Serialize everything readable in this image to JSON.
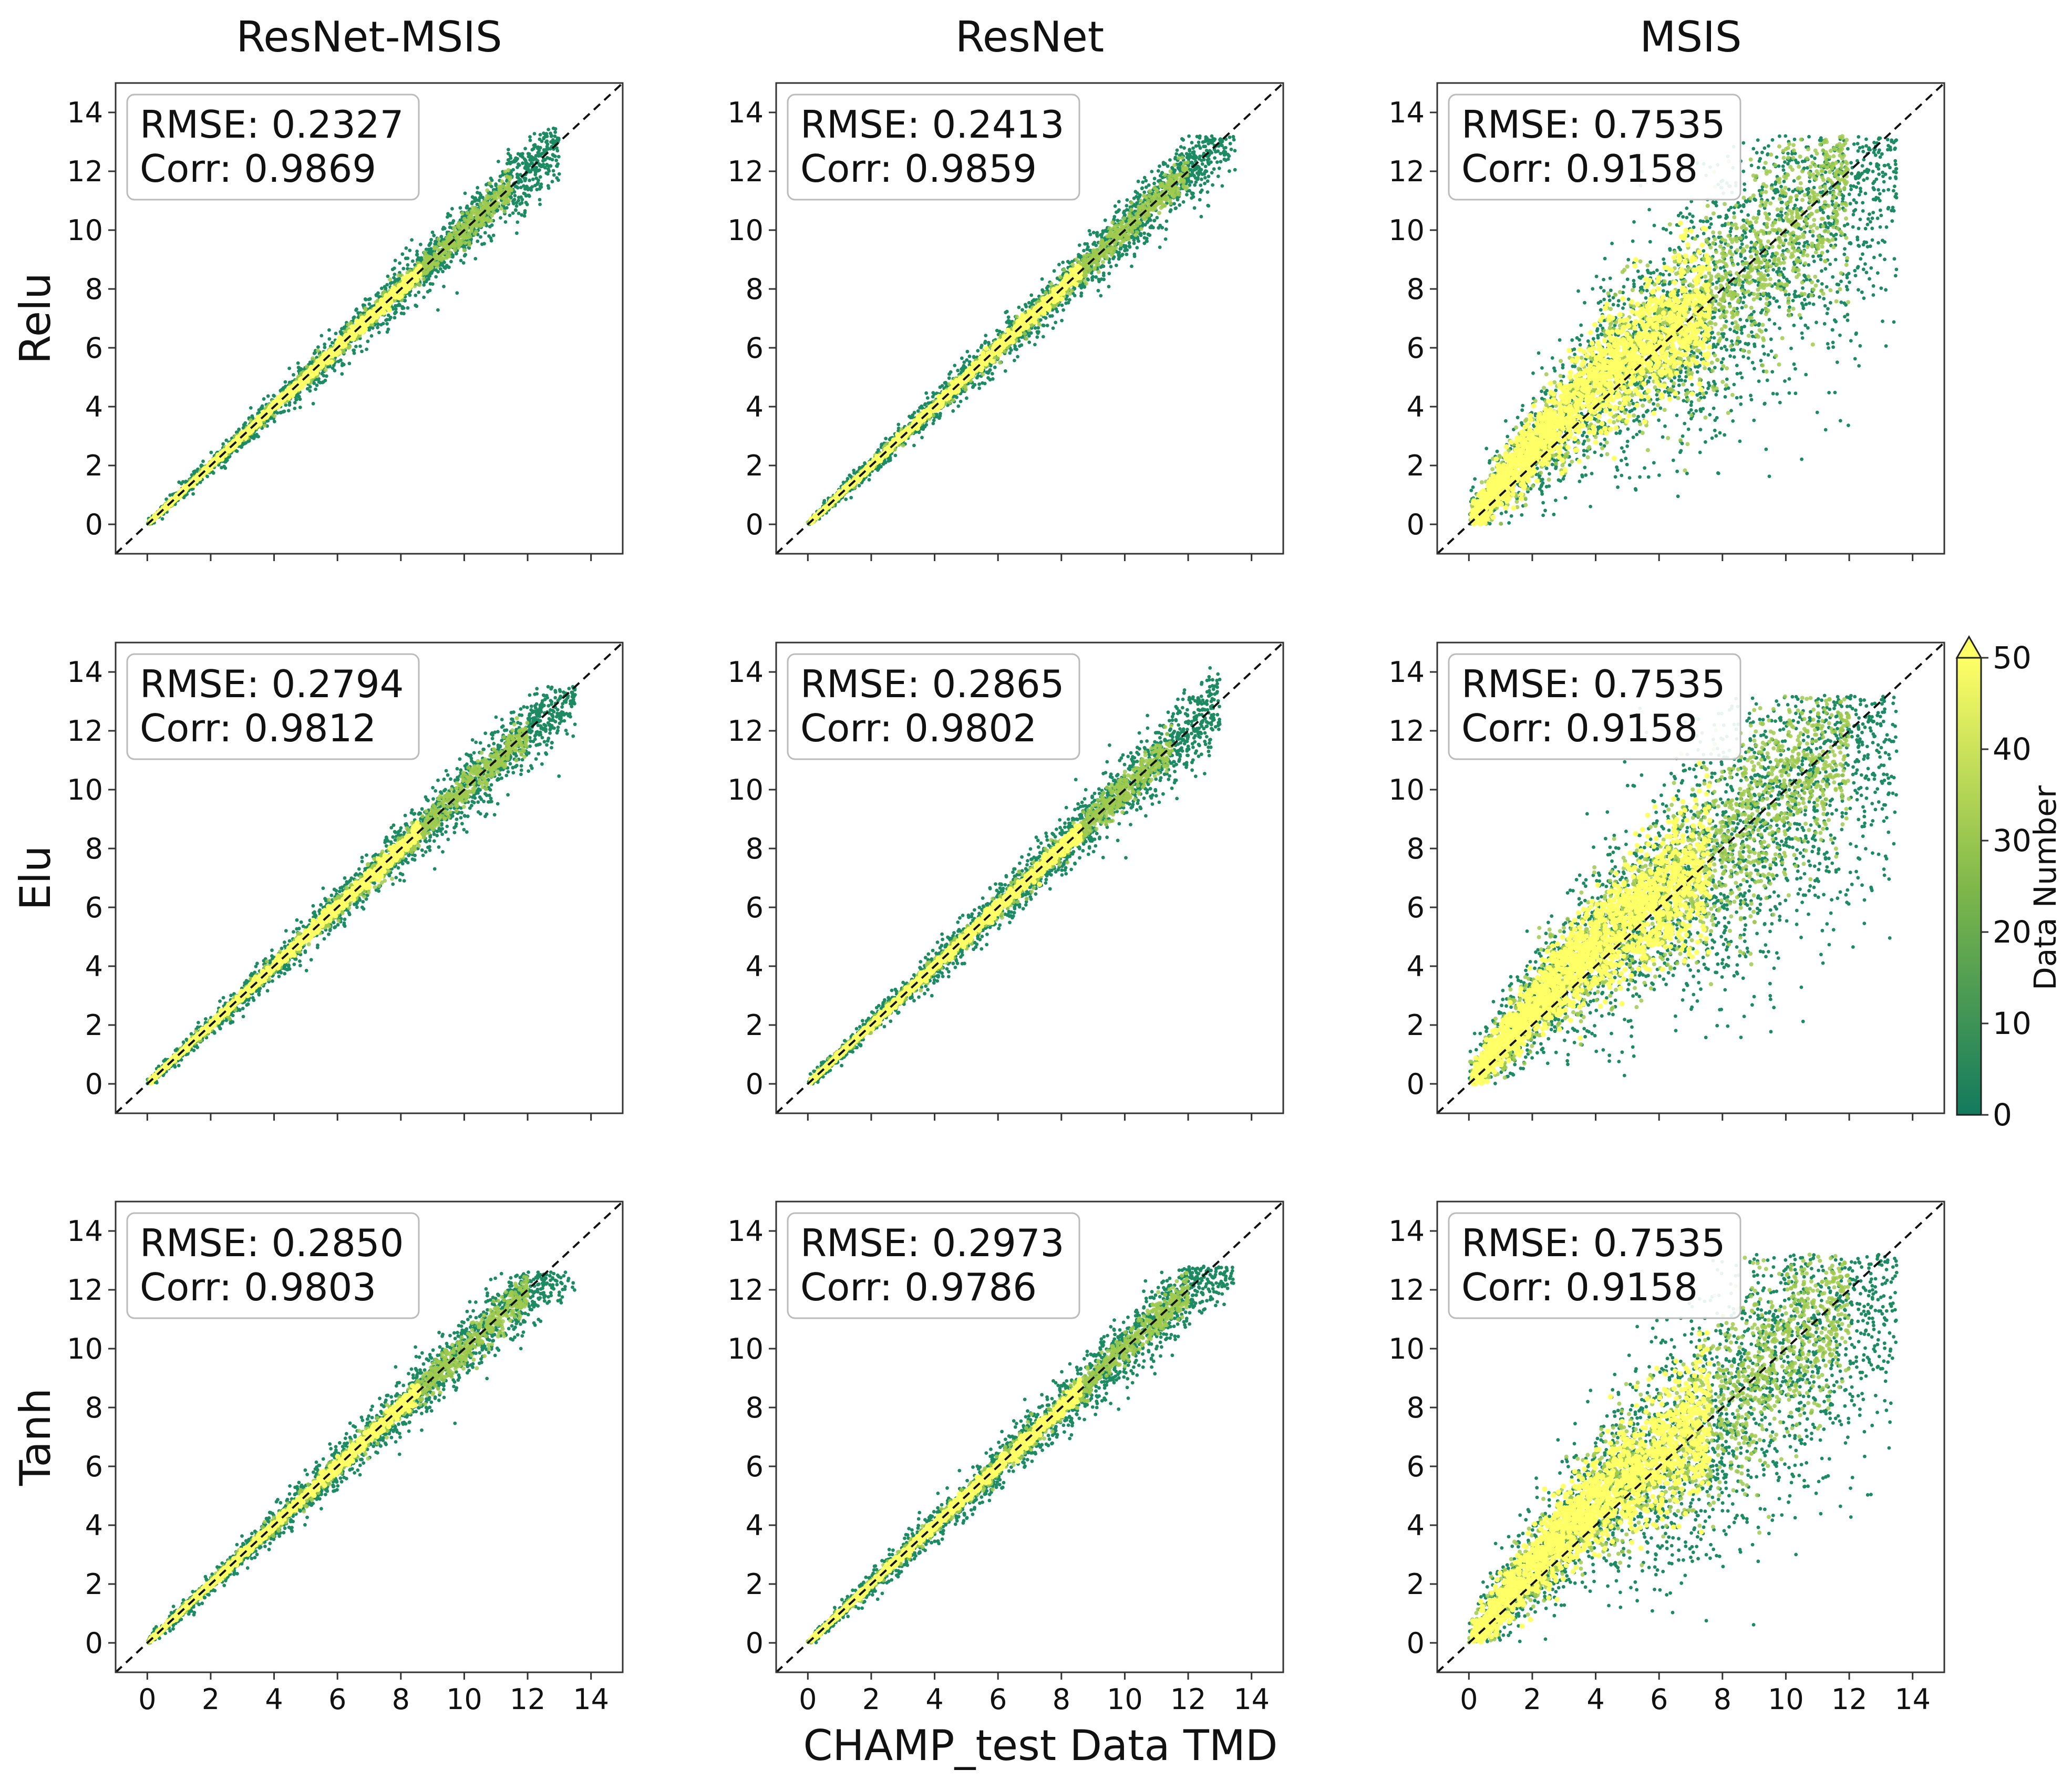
{
  "chart_data": {
    "type": "scatter",
    "subtype": "density-scatter grid (3 rows x 3 columns)",
    "column_titles": [
      "ResNet-MSIS",
      "ResNet",
      "MSIS"
    ],
    "row_labels": [
      "Relu",
      "Elu",
      "Tanh"
    ],
    "xlabel": "CHAMP_test Data TMD",
    "xlim": [
      -1,
      15
    ],
    "ylim": [
      -1,
      15
    ],
    "x_ticks": [
      "0",
      "2",
      "4",
      "6",
      "8",
      "10",
      "12",
      "14"
    ],
    "y_ticks": [
      "0",
      "2",
      "4",
      "6",
      "8",
      "10",
      "12",
      "14"
    ],
    "reference_line": "y = x (dashed, black)",
    "grid": false,
    "panels": [
      {
        "row": "Relu",
        "column": "ResNet-MSIS",
        "rmse_text": "RMSE: 0.2327",
        "corr_text": "Corr: 0.9869",
        "rmse": 0.2327,
        "corr": 0.9869,
        "x_range": [
          0,
          13
        ],
        "y_range": [
          0,
          13.5
        ],
        "spread": 0.45
      },
      {
        "row": "Relu",
        "column": "ResNet",
        "rmse_text": "RMSE: 0.2413",
        "corr_text": "Corr: 0.9859",
        "rmse": 0.2413,
        "corr": 0.9859,
        "x_range": [
          0,
          13.5
        ],
        "y_range": [
          0,
          13.2
        ],
        "spread": 0.47
      },
      {
        "row": "Relu",
        "column": "MSIS",
        "rmse_text": "RMSE: 0.7535",
        "corr_text": "Corr: 0.9158",
        "rmse": 0.7535,
        "corr": 0.9158,
        "x_range": [
          0,
          13.5
        ],
        "y_range": [
          0,
          13.2
        ],
        "spread": 1.3
      },
      {
        "row": "Elu",
        "column": "ResNet-MSIS",
        "rmse_text": "RMSE: 0.2794",
        "corr_text": "Corr: 0.9812",
        "rmse": 0.2794,
        "corr": 0.9812,
        "x_range": [
          0,
          13.5
        ],
        "y_range": [
          0,
          13.5
        ],
        "spread": 0.52
      },
      {
        "row": "Elu",
        "column": "ResNet",
        "rmse_text": "RMSE: 0.2865",
        "corr_text": "Corr: 0.9802",
        "rmse": 0.2865,
        "corr": 0.9802,
        "x_range": [
          0,
          13
        ],
        "y_range": [
          0,
          14.7
        ],
        "spread": 0.53
      },
      {
        "row": "Elu",
        "column": "MSIS",
        "rmse_text": "RMSE: 0.7535",
        "corr_text": "Corr: 0.9158",
        "rmse": 0.7535,
        "corr": 0.9158,
        "x_range": [
          0,
          13.5
        ],
        "y_range": [
          0,
          13.2
        ],
        "spread": 1.3
      },
      {
        "row": "Tanh",
        "column": "ResNet-MSIS",
        "rmse_text": "RMSE: 0.2850",
        "corr_text": "Corr: 0.9803",
        "rmse": 0.285,
        "corr": 0.9803,
        "x_range": [
          0,
          13.5
        ],
        "y_range": [
          0,
          12.6
        ],
        "spread": 0.52
      },
      {
        "row": "Tanh",
        "column": "ResNet",
        "rmse_text": "RMSE: 0.2973",
        "corr_text": "Corr: 0.9786",
        "rmse": 0.2973,
        "corr": 0.9786,
        "x_range": [
          0,
          13.5
        ],
        "y_range": [
          0,
          12.8
        ],
        "spread": 0.55
      },
      {
        "row": "Tanh",
        "column": "MSIS",
        "rmse_text": "RMSE: 0.7535",
        "corr_text": "Corr: 0.9158",
        "rmse": 0.7535,
        "corr": 0.9158,
        "x_range": [
          0,
          13.5
        ],
        "y_range": [
          0,
          13.2
        ],
        "spread": 1.3
      }
    ],
    "colorbar": {
      "label": "Data Number",
      "range": [
        0,
        50
      ],
      "ticks": [
        "0",
        "10",
        "20",
        "30",
        "40",
        "50"
      ],
      "extend": "max",
      "colormap": "summer",
      "color_low": "#127a5e",
      "color_high": "#ffff66"
    }
  }
}
